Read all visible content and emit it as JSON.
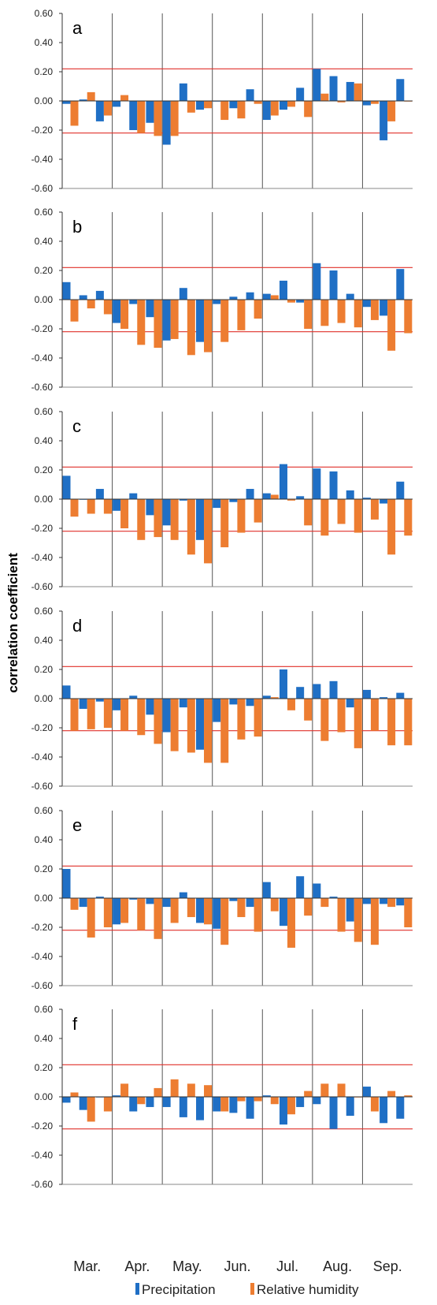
{
  "chart_data": {
    "type": "bar",
    "ylabel": "correlation coefficient",
    "ylim": [
      -0.6,
      0.6
    ],
    "yticks": [
      "0.60",
      "0.40",
      "0.20",
      "0.00",
      "-0.20",
      "-0.40",
      "-0.60"
    ],
    "ytick_values": [
      0.6,
      0.4,
      0.2,
      0,
      -0.2,
      -0.4,
      -0.6
    ],
    "months": [
      "Mar.",
      "Apr.",
      "May.",
      "Jun.",
      "Jul.",
      "Aug.",
      "Sep."
    ],
    "bars_per_month": 3,
    "significance": 0.22,
    "legend": [
      "Precipitation",
      "Relative humidity"
    ],
    "colors": {
      "precipitation": "#1f6fc5",
      "humidity": "#ed7d31",
      "threshold": "#e0302a",
      "axis": "#333333"
    },
    "panels": [
      {
        "label": "a",
        "precipitation": [
          -0.02,
          0.01,
          -0.14,
          -0.04,
          -0.2,
          -0.15,
          -0.3,
          0.12,
          -0.06,
          0.0,
          -0.05,
          0.08,
          -0.13,
          -0.06,
          0.09,
          0.22,
          0.17,
          0.13,
          -0.03,
          -0.27,
          0.15
        ],
        "humidity": [
          -0.17,
          0.06,
          -0.1,
          0.04,
          -0.22,
          -0.24,
          -0.24,
          -0.08,
          -0.05,
          -0.13,
          -0.12,
          -0.02,
          -0.1,
          -0.04,
          -0.11,
          0.05,
          -0.01,
          0.12,
          -0.02,
          -0.14,
          0.0
        ]
      },
      {
        "label": "b",
        "precipitation": [
          0.12,
          0.03,
          0.06,
          -0.16,
          -0.03,
          -0.12,
          -0.28,
          0.08,
          -0.29,
          -0.03,
          0.02,
          0.05,
          0.04,
          0.13,
          -0.02,
          0.25,
          0.2,
          0.04,
          -0.05,
          -0.11,
          0.21
        ],
        "humidity": [
          -0.15,
          -0.06,
          -0.1,
          -0.2,
          -0.31,
          -0.33,
          -0.27,
          -0.38,
          -0.36,
          -0.29,
          -0.21,
          -0.13,
          0.03,
          -0.02,
          -0.2,
          -0.18,
          -0.16,
          -0.19,
          -0.14,
          -0.35,
          -0.23
        ]
      },
      {
        "label": "c",
        "precipitation": [
          0.16,
          0.0,
          0.07,
          -0.08,
          0.04,
          -0.11,
          -0.18,
          -0.01,
          -0.28,
          -0.06,
          -0.02,
          0.07,
          0.04,
          0.24,
          0.02,
          0.21,
          0.19,
          0.06,
          0.01,
          -0.03,
          0.12
        ],
        "humidity": [
          -0.12,
          -0.1,
          -0.1,
          -0.2,
          -0.28,
          -0.26,
          -0.28,
          -0.38,
          -0.44,
          -0.33,
          -0.23,
          -0.16,
          0.03,
          -0.01,
          -0.18,
          -0.25,
          -0.17,
          -0.23,
          -0.14,
          -0.38,
          -0.25
        ]
      },
      {
        "label": "d",
        "precipitation": [
          0.09,
          -0.07,
          -0.02,
          -0.08,
          0.02,
          -0.11,
          -0.23,
          -0.06,
          -0.35,
          -0.16,
          -0.04,
          -0.05,
          0.02,
          0.2,
          0.08,
          0.1,
          0.12,
          -0.06,
          0.06,
          0.01,
          0.04
        ],
        "humidity": [
          -0.22,
          -0.21,
          -0.2,
          -0.22,
          -0.25,
          -0.31,
          -0.36,
          -0.37,
          -0.44,
          -0.44,
          -0.28,
          -0.26,
          0.01,
          -0.08,
          -0.15,
          -0.29,
          -0.23,
          -0.34,
          -0.22,
          -0.32,
          -0.32
        ]
      },
      {
        "label": "e",
        "precipitation": [
          0.2,
          -0.06,
          0.01,
          -0.18,
          -0.01,
          -0.04,
          -0.06,
          0.04,
          -0.17,
          -0.21,
          -0.02,
          -0.06,
          0.11,
          -0.19,
          0.15,
          0.1,
          0.01,
          -0.16,
          -0.04,
          -0.04,
          -0.05
        ],
        "humidity": [
          -0.08,
          -0.27,
          -0.2,
          -0.17,
          -0.22,
          -0.28,
          -0.17,
          -0.13,
          -0.18,
          -0.32,
          -0.13,
          -0.23,
          -0.09,
          -0.34,
          -0.12,
          -0.06,
          -0.23,
          -0.3,
          -0.32,
          -0.06,
          -0.2
        ]
      },
      {
        "label": "f",
        "precipitation": [
          -0.04,
          -0.09,
          0.0,
          0.01,
          -0.1,
          -0.07,
          -0.07,
          -0.14,
          -0.16,
          -0.1,
          -0.11,
          -0.15,
          0.01,
          -0.19,
          -0.07,
          -0.05,
          -0.22,
          -0.13,
          0.07,
          -0.18,
          -0.15
        ],
        "humidity": [
          0.03,
          -0.17,
          -0.1,
          0.09,
          -0.05,
          0.06,
          0.12,
          0.09,
          0.08,
          -0.1,
          -0.03,
          -0.03,
          -0.05,
          -0.12,
          0.04,
          0.09,
          0.09,
          0.0,
          -0.1,
          0.04,
          0.01
        ]
      }
    ]
  }
}
